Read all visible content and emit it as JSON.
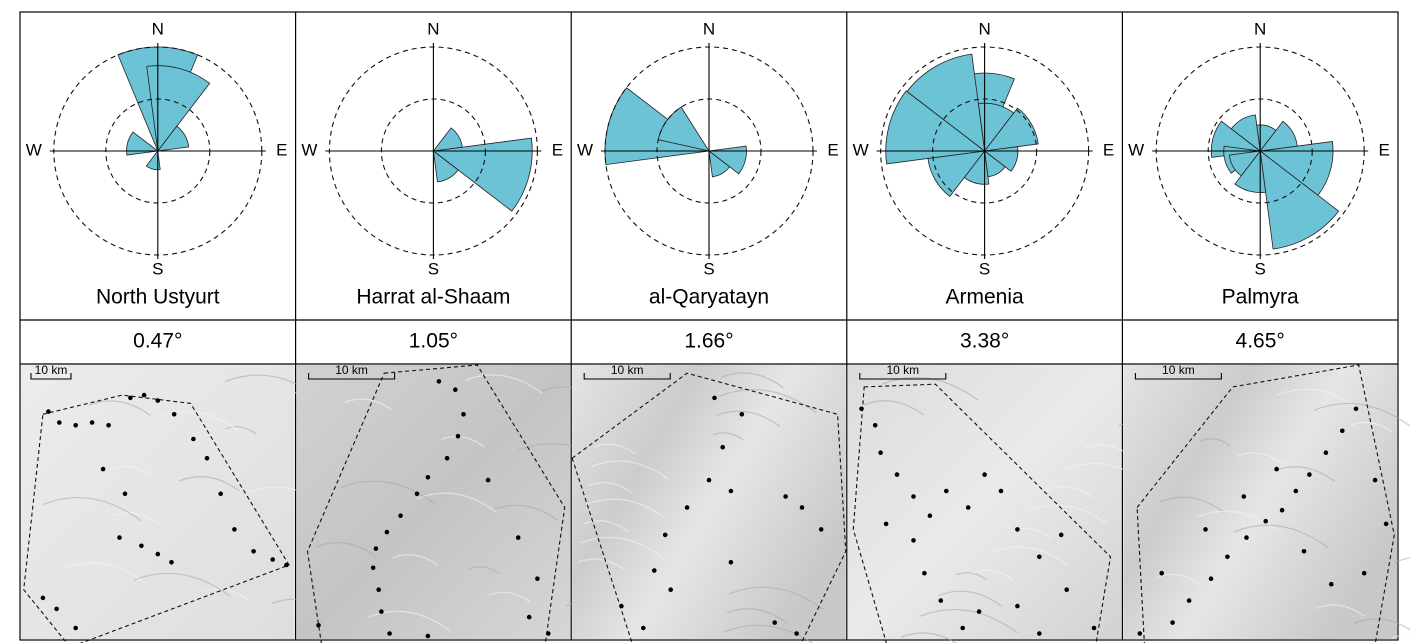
{
  "colors": {
    "petal_fill": "#6cc3d5",
    "petal_stroke": "#222222",
    "line": "#000000",
    "terrain_light": "#e6e6e6",
    "terrain_mid": "#cfcfcf"
  },
  "compass": {
    "n": "N",
    "s": "S",
    "e": "E",
    "w": "W"
  },
  "panels": [
    {
      "name": "North Ustyurt",
      "value": "0.47°",
      "scale_label": "10 km",
      "rose": [
        {
          "a": 0,
          "r": 1.0
        },
        {
          "a": 15,
          "r": 0.82
        },
        {
          "a": 60,
          "r": 0.3
        },
        {
          "a": 285,
          "r": 0.3
        },
        {
          "a": 195,
          "r": 0.18
        }
      ],
      "points": [
        [
          0.1,
          0.17
        ],
        [
          0.14,
          0.21
        ],
        [
          0.2,
          0.22
        ],
        [
          0.26,
          0.21
        ],
        [
          0.32,
          0.22
        ],
        [
          0.4,
          0.12
        ],
        [
          0.45,
          0.11
        ],
        [
          0.5,
          0.13
        ],
        [
          0.56,
          0.18
        ],
        [
          0.63,
          0.27
        ],
        [
          0.68,
          0.34
        ],
        [
          0.3,
          0.38
        ],
        [
          0.38,
          0.47
        ],
        [
          0.73,
          0.47
        ],
        [
          0.78,
          0.6
        ],
        [
          0.85,
          0.68
        ],
        [
          0.92,
          0.71
        ],
        [
          0.97,
          0.73
        ],
        [
          0.36,
          0.63
        ],
        [
          0.44,
          0.66
        ],
        [
          0.5,
          0.69
        ],
        [
          0.55,
          0.72
        ],
        [
          0.08,
          0.85
        ],
        [
          0.13,
          0.89
        ],
        [
          0.2,
          0.96
        ]
      ],
      "hull": [
        [
          0.08,
          0.18
        ],
        [
          0.37,
          0.11
        ],
        [
          0.62,
          0.14
        ],
        [
          0.98,
          0.73
        ],
        [
          0.18,
          1.03
        ],
        [
          0.01,
          0.82
        ]
      ],
      "texture": "flat"
    },
    {
      "name": "Harrat al-Shaam",
      "value": "1.05°",
      "scale_label": "10 km",
      "rose": [
        {
          "a": 105,
          "r": 0.95
        },
        {
          "a": 60,
          "r": 0.28
        },
        {
          "a": 150,
          "r": 0.3
        }
      ],
      "points": [
        [
          0.52,
          0.06
        ],
        [
          0.58,
          0.09
        ],
        [
          0.61,
          0.18
        ],
        [
          0.59,
          0.26
        ],
        [
          0.55,
          0.34
        ],
        [
          0.48,
          0.41
        ],
        [
          0.44,
          0.47
        ],
        [
          0.38,
          0.55
        ],
        [
          0.33,
          0.61
        ],
        [
          0.29,
          0.67
        ],
        [
          0.28,
          0.74
        ],
        [
          0.3,
          0.82
        ],
        [
          0.31,
          0.9
        ],
        [
          0.34,
          0.98
        ],
        [
          0.48,
          1.05
        ],
        [
          0.7,
          0.42
        ],
        [
          0.81,
          0.63
        ],
        [
          0.88,
          0.78
        ],
        [
          0.85,
          0.92
        ],
        [
          0.92,
          0.98
        ],
        [
          0.08,
          0.95
        ]
      ],
      "hull": [
        [
          0.32,
          0.03
        ],
        [
          0.66,
          0.0
        ],
        [
          0.98,
          0.52
        ],
        [
          0.9,
          1.08
        ],
        [
          0.1,
          1.08
        ],
        [
          0.04,
          0.68
        ]
      ],
      "texture": "rough"
    },
    {
      "name": "al-Qaryatayn",
      "value": "1.66°",
      "scale_label": "10 km",
      "rose": [
        {
          "a": 285,
          "r": 1.0
        },
        {
          "a": 305,
          "r": 0.5
        },
        {
          "a": 105,
          "r": 0.36
        },
        {
          "a": 150,
          "r": 0.25
        }
      ],
      "points": [
        [
          0.52,
          0.12
        ],
        [
          0.62,
          0.18
        ],
        [
          0.55,
          0.3
        ],
        [
          0.5,
          0.42
        ],
        [
          0.58,
          0.46
        ],
        [
          0.42,
          0.52
        ],
        [
          0.34,
          0.62
        ],
        [
          0.3,
          0.75
        ],
        [
          0.36,
          0.82
        ],
        [
          0.58,
          0.72
        ],
        [
          0.78,
          0.48
        ],
        [
          0.84,
          0.52
        ],
        [
          0.91,
          0.6
        ],
        [
          0.74,
          0.94
        ],
        [
          0.82,
          0.98
        ],
        [
          0.26,
          0.96
        ],
        [
          0.18,
          0.88
        ]
      ],
      "hull": [
        [
          0.0,
          0.34
        ],
        [
          0.42,
          0.03
        ],
        [
          0.97,
          0.18
        ],
        [
          1.0,
          0.68
        ],
        [
          0.82,
          1.05
        ],
        [
          0.24,
          1.08
        ]
      ],
      "texture": "ridges"
    },
    {
      "name": "Armenia",
      "value": "3.38°",
      "scale_label": "10 km",
      "rose": [
        {
          "a": 0,
          "r": 0.75
        },
        {
          "a": 15,
          "r": 0.46
        },
        {
          "a": 60,
          "r": 0.52
        },
        {
          "a": 105,
          "r": 0.32
        },
        {
          "a": 150,
          "r": 0.25
        },
        {
          "a": 195,
          "r": 0.32
        },
        {
          "a": 240,
          "r": 0.55
        },
        {
          "a": 285,
          "r": 0.95
        },
        {
          "a": 330,
          "r": 0.94
        }
      ],
      "points": [
        [
          0.05,
          0.16
        ],
        [
          0.1,
          0.22
        ],
        [
          0.12,
          0.32
        ],
        [
          0.18,
          0.4
        ],
        [
          0.24,
          0.48
        ],
        [
          0.3,
          0.55
        ],
        [
          0.36,
          0.46
        ],
        [
          0.44,
          0.52
        ],
        [
          0.5,
          0.4
        ],
        [
          0.56,
          0.46
        ],
        [
          0.62,
          0.6
        ],
        [
          0.7,
          0.7
        ],
        [
          0.78,
          0.62
        ],
        [
          0.24,
          0.64
        ],
        [
          0.28,
          0.76
        ],
        [
          0.34,
          0.86
        ],
        [
          0.42,
          0.96
        ],
        [
          0.48,
          0.9
        ],
        [
          0.62,
          0.88
        ],
        [
          0.7,
          0.98
        ],
        [
          0.8,
          0.82
        ],
        [
          0.9,
          0.96
        ],
        [
          0.14,
          0.58
        ]
      ],
      "hull": [
        [
          0.06,
          0.08
        ],
        [
          0.32,
          0.07
        ],
        [
          0.96,
          0.7
        ],
        [
          0.9,
          1.06
        ],
        [
          0.16,
          1.08
        ],
        [
          0.02,
          0.6
        ]
      ],
      "texture": "mixed"
    },
    {
      "name": "Palmyra",
      "value": "4.65°",
      "scale_label": "10 km",
      "rose": [
        {
          "a": 150,
          "r": 0.95
        },
        {
          "a": 105,
          "r": 0.7
        },
        {
          "a": 195,
          "r": 0.4
        },
        {
          "a": 285,
          "r": 0.47
        },
        {
          "a": 255,
          "r": 0.35
        },
        {
          "a": 240,
          "r": 0.3
        },
        {
          "a": 330,
          "r": 0.35
        },
        {
          "a": 15,
          "r": 0.25
        },
        {
          "a": 60,
          "r": 0.36
        }
      ],
      "points": [
        [
          0.85,
          0.16
        ],
        [
          0.8,
          0.24
        ],
        [
          0.74,
          0.32
        ],
        [
          0.68,
          0.4
        ],
        [
          0.63,
          0.46
        ],
        [
          0.58,
          0.53
        ],
        [
          0.52,
          0.57
        ],
        [
          0.45,
          0.63
        ],
        [
          0.38,
          0.7
        ],
        [
          0.32,
          0.78
        ],
        [
          0.24,
          0.86
        ],
        [
          0.18,
          0.94
        ],
        [
          0.92,
          0.42
        ],
        [
          0.96,
          0.58
        ],
        [
          0.88,
          0.76
        ],
        [
          0.76,
          0.8
        ],
        [
          0.66,
          0.68
        ],
        [
          0.3,
          0.6
        ],
        [
          0.44,
          0.48
        ],
        [
          0.56,
          0.38
        ],
        [
          0.14,
          0.76
        ],
        [
          0.06,
          0.98
        ]
      ],
      "hull": [
        [
          0.05,
          0.52
        ],
        [
          0.4,
          0.08
        ],
        [
          0.86,
          0.0
        ],
        [
          0.99,
          0.62
        ],
        [
          0.92,
          1.02
        ],
        [
          0.08,
          1.08
        ]
      ],
      "texture": "ridges"
    }
  ]
}
